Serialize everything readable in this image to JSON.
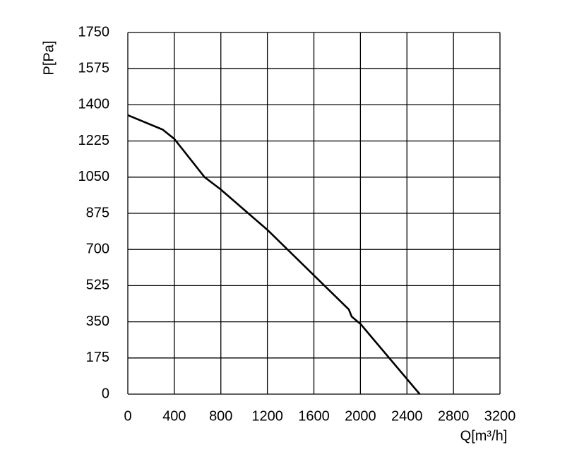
{
  "chart_data": {
    "type": "line",
    "xlabel": "Q[m³/h]",
    "ylabel": "P[Pa]",
    "series": [
      {
        "color": "#000000",
        "x": [
          0,
          300,
          400,
          660,
          800,
          1025,
          1200,
          1900,
          1925,
          2000,
          2510
        ],
        "values": [
          1350,
          1280,
          1235,
          1050,
          990,
          880,
          795,
          410,
          375,
          340,
          0
        ]
      }
    ],
    "xlim": [
      0,
      3200
    ],
    "xticks": [
      0,
      400,
      800,
      1200,
      1600,
      2000,
      2400,
      2800,
      3200
    ],
    "ylim": [
      0,
      1750
    ],
    "yticks": [
      0,
      175,
      350,
      525,
      700,
      875,
      1050,
      1225,
      1400,
      1575,
      1750
    ],
    "grid": true
  }
}
